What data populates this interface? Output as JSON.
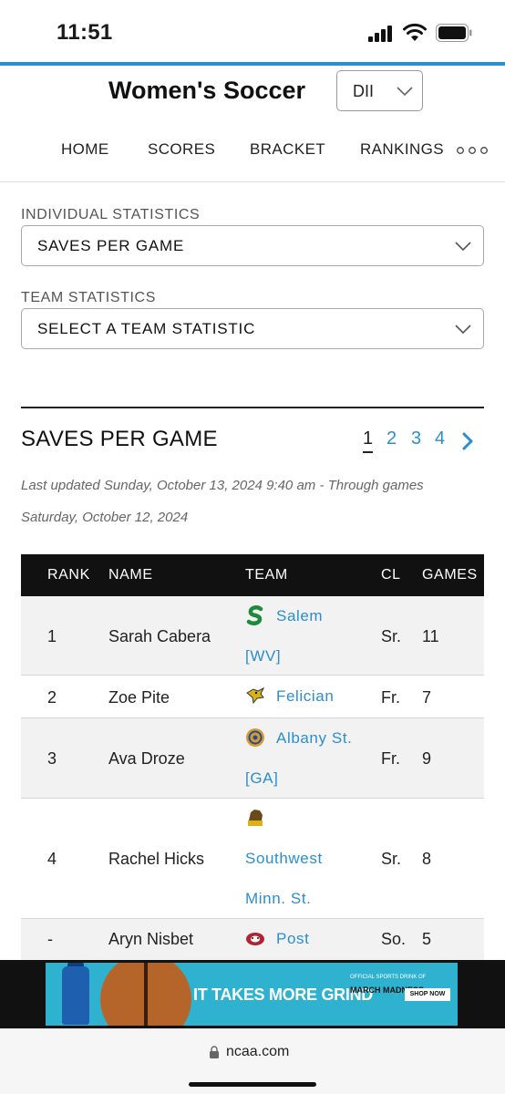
{
  "status_bar": {
    "time": "11:51"
  },
  "header": {
    "site_title": "Women's Soccer",
    "division": {
      "selected": "DII"
    },
    "nav": [
      {
        "label": "HOME"
      },
      {
        "label": "SCORES"
      },
      {
        "label": "BRACKET"
      },
      {
        "label": "RANKINGS"
      }
    ]
  },
  "filters": {
    "individual": {
      "label": "INDIVIDUAL STATISTICS",
      "selected": "SAVES PER GAME"
    },
    "team": {
      "label": "TEAM STATISTICS",
      "selected": "SELECT A TEAM STATISTIC"
    }
  },
  "section": {
    "title": "SAVES PER GAME",
    "pages": [
      "1",
      "2",
      "3",
      "4"
    ],
    "current_page": "1",
    "updated_line1": "Last updated  Sunday, October 13, 2024 9:40 am - Through games",
    "updated_line2": "Saturday, October 12, 2024"
  },
  "table": {
    "columns": [
      "RANK",
      "NAME",
      "TEAM",
      "CL",
      "GAMES"
    ],
    "rows": [
      {
        "rank": "1",
        "name": "Sarah Cabera",
        "team_lines": [
          "Salem",
          "[WV]"
        ],
        "cl": "Sr.",
        "games": "11",
        "logo": "salem-logo-icon",
        "logo_color": "#1f8a3c"
      },
      {
        "rank": "2",
        "name": "Zoe Pite",
        "team_lines": [
          "Felician"
        ],
        "cl": "Fr.",
        "games": "7",
        "logo": "felician-logo-icon",
        "logo_color": "#d9b21a"
      },
      {
        "rank": "3",
        "name": "Ava Droze",
        "team_lines": [
          "Albany St.",
          "[GA]"
        ],
        "cl": "Fr.",
        "games": "9",
        "logo": "albany-st-logo-icon",
        "logo_color": "#d99a2b"
      },
      {
        "rank": "4",
        "name": "Rachel Hicks",
        "team_lines": [
          "Southwest",
          "Minn. St."
        ],
        "cl": "Sr.",
        "games": "8",
        "logo": "southwest-minn-st-logo-icon",
        "logo_color": "#6b4a1a"
      },
      {
        "rank": "-",
        "name": "Aryn Nisbet",
        "team_lines": [
          "Post"
        ],
        "cl": "So.",
        "games": "5",
        "logo": "post-logo-icon",
        "logo_color": "#b22234"
      }
    ]
  },
  "ad": {
    "headline": "IT TAKES MORE GRIND",
    "small_text": "OFFICIAL SPORTS DRINK OF",
    "logo_text": "MARCH MADNESS",
    "shop_label": "SHOP NOW"
  },
  "browser": {
    "url": "ncaa.com"
  },
  "colors": {
    "accent": "#2a8fcf",
    "header_row": "#111111",
    "row_alt": "#f2f2f2"
  }
}
